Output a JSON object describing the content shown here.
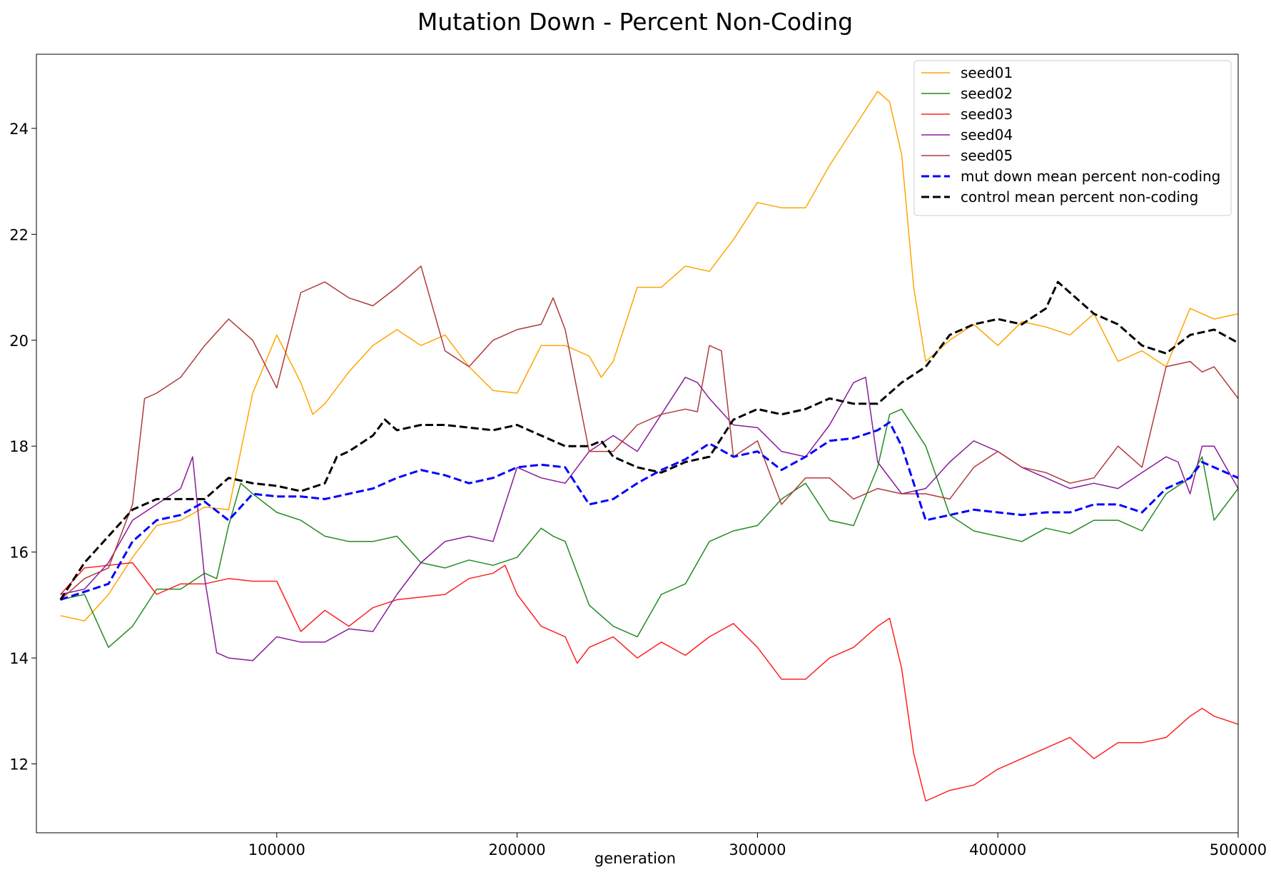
{
  "chart_data": {
    "type": "line",
    "title": "Mutation Down - Percent Non-Coding",
    "xlabel": "generation",
    "ylabel": "",
    "xlim": [
      0,
      500000
    ],
    "ylim": [
      10.7,
      25.4
    ],
    "xticks": [
      100000,
      200000,
      300000,
      400000,
      500000
    ],
    "xtick_labels": [
      "100000",
      "200000",
      "300000",
      "400000",
      "500000"
    ],
    "yticks": [
      12,
      14,
      16,
      18,
      20,
      22,
      24
    ],
    "ytick_labels": [
      "12",
      "14",
      "16",
      "18",
      "20",
      "22",
      "24"
    ],
    "grid": false,
    "legend_position": "top-right",
    "series": [
      {
        "name": "seed01",
        "color": "#FFA500",
        "dashed": false,
        "width": 1.5,
        "x": [
          10000,
          20000,
          30000,
          40000,
          50000,
          60000,
          70000,
          80000,
          90000,
          100000,
          110000,
          115000,
          120000,
          130000,
          140000,
          150000,
          160000,
          170000,
          180000,
          190000,
          200000,
          210000,
          220000,
          230000,
          235000,
          240000,
          250000,
          260000,
          270000,
          280000,
          290000,
          300000,
          310000,
          320000,
          330000,
          340000,
          350000,
          355000,
          360000,
          365000,
          370000,
          380000,
          390000,
          400000,
          410000,
          420000,
          430000,
          440000,
          450000,
          460000,
          470000,
          480000,
          490000,
          500000
        ],
        "y": [
          14.8,
          14.7,
          15.2,
          15.9,
          16.5,
          16.6,
          16.85,
          16.8,
          19.0,
          20.1,
          19.2,
          18.6,
          18.8,
          19.4,
          19.9,
          20.2,
          19.9,
          20.1,
          19.5,
          19.05,
          19.0,
          19.9,
          19.9,
          19.7,
          19.3,
          19.6,
          21.0,
          21.0,
          21.4,
          21.3,
          21.9,
          22.6,
          22.5,
          22.5,
          23.3,
          24.0,
          24.7,
          24.5,
          23.5,
          21.0,
          19.6,
          20.0,
          20.3,
          19.9,
          20.35,
          20.25,
          20.1,
          20.5,
          19.6,
          19.8,
          19.5,
          20.6,
          20.4,
          20.5
        ]
      },
      {
        "name": "seed02",
        "color": "#228B22",
        "dashed": false,
        "width": 1.5,
        "x": [
          10000,
          20000,
          30000,
          40000,
          50000,
          60000,
          70000,
          75000,
          80000,
          85000,
          90000,
          100000,
          110000,
          120000,
          130000,
          140000,
          150000,
          160000,
          170000,
          180000,
          190000,
          200000,
          210000,
          215000,
          220000,
          230000,
          240000,
          250000,
          260000,
          270000,
          280000,
          290000,
          300000,
          310000,
          320000,
          330000,
          340000,
          350000,
          355000,
          360000,
          370000,
          380000,
          390000,
          400000,
          410000,
          420000,
          430000,
          440000,
          450000,
          460000,
          470000,
          480000,
          485000,
          490000,
          500000
        ],
        "y": [
          15.1,
          15.2,
          14.2,
          14.6,
          15.3,
          15.3,
          15.6,
          15.5,
          16.5,
          17.3,
          17.1,
          16.75,
          16.6,
          16.3,
          16.2,
          16.2,
          16.3,
          15.8,
          15.7,
          15.85,
          15.75,
          15.9,
          16.45,
          16.3,
          16.2,
          15.0,
          14.6,
          14.4,
          15.2,
          15.4,
          16.2,
          16.4,
          16.5,
          17.0,
          17.3,
          16.6,
          16.5,
          17.6,
          18.6,
          18.7,
          18.0,
          16.7,
          16.4,
          16.3,
          16.2,
          16.45,
          16.35,
          16.6,
          16.6,
          16.4,
          17.1,
          17.4,
          17.8,
          16.6,
          17.2
        ]
      },
      {
        "name": "seed03",
        "color": "#FF2020",
        "dashed": false,
        "width": 1.5,
        "x": [
          10000,
          20000,
          30000,
          40000,
          50000,
          60000,
          70000,
          80000,
          90000,
          100000,
          110000,
          120000,
          130000,
          140000,
          150000,
          160000,
          170000,
          180000,
          190000,
          195000,
          200000,
          210000,
          220000,
          225000,
          230000,
          240000,
          250000,
          260000,
          270000,
          280000,
          290000,
          300000,
          310000,
          320000,
          330000,
          340000,
          350000,
          355000,
          360000,
          365000,
          370000,
          380000,
          390000,
          400000,
          410000,
          420000,
          430000,
          440000,
          450000,
          460000,
          470000,
          480000,
          485000,
          490000,
          500000
        ],
        "y": [
          15.2,
          15.7,
          15.75,
          15.8,
          15.2,
          15.4,
          15.4,
          15.5,
          15.45,
          15.45,
          14.5,
          14.9,
          14.6,
          14.95,
          15.1,
          15.15,
          15.2,
          15.5,
          15.6,
          15.75,
          15.2,
          14.6,
          14.4,
          13.9,
          14.2,
          14.4,
          14.0,
          14.3,
          14.05,
          14.4,
          14.65,
          14.2,
          13.6,
          13.6,
          14.0,
          14.2,
          14.6,
          14.75,
          13.8,
          12.2,
          11.3,
          11.5,
          11.6,
          11.9,
          12.1,
          12.3,
          12.5,
          12.1,
          12.4,
          12.4,
          12.5,
          12.9,
          13.05,
          12.9,
          12.75
        ]
      },
      {
        "name": "seed04",
        "color": "#8B1A9B",
        "dashed": false,
        "width": 1.5,
        "x": [
          10000,
          20000,
          30000,
          40000,
          50000,
          60000,
          65000,
          70000,
          75000,
          80000,
          90000,
          100000,
          110000,
          120000,
          130000,
          140000,
          150000,
          160000,
          170000,
          180000,
          190000,
          200000,
          210000,
          220000,
          230000,
          240000,
          250000,
          260000,
          270000,
          275000,
          280000,
          290000,
          300000,
          310000,
          320000,
          330000,
          340000,
          345000,
          350000,
          360000,
          370000,
          380000,
          390000,
          400000,
          410000,
          420000,
          430000,
          440000,
          450000,
          460000,
          470000,
          475000,
          480000,
          485000,
          490000,
          500000
        ],
        "y": [
          15.2,
          15.3,
          15.8,
          16.6,
          16.9,
          17.2,
          17.8,
          15.5,
          14.1,
          14.0,
          13.95,
          14.4,
          14.3,
          14.3,
          14.55,
          14.5,
          15.2,
          15.8,
          16.2,
          16.3,
          16.2,
          17.6,
          17.4,
          17.3,
          17.9,
          18.2,
          17.9,
          18.6,
          19.3,
          19.2,
          18.9,
          18.4,
          18.35,
          17.9,
          17.8,
          18.4,
          19.2,
          19.3,
          17.7,
          17.1,
          17.2,
          17.7,
          18.1,
          17.9,
          17.6,
          17.4,
          17.2,
          17.3,
          17.2,
          17.5,
          17.8,
          17.7,
          17.1,
          18.0,
          18.0,
          17.2
        ]
      },
      {
        "name": "seed05",
        "color": "#B03A3A",
        "dashed": false,
        "width": 1.5,
        "x": [
          10000,
          20000,
          30000,
          40000,
          45000,
          50000,
          60000,
          70000,
          80000,
          90000,
          100000,
          110000,
          120000,
          130000,
          140000,
          150000,
          160000,
          170000,
          180000,
          190000,
          200000,
          210000,
          215000,
          220000,
          230000,
          240000,
          250000,
          260000,
          270000,
          275000,
          280000,
          285000,
          290000,
          300000,
          310000,
          320000,
          330000,
          340000,
          350000,
          360000,
          370000,
          380000,
          390000,
          400000,
          410000,
          420000,
          430000,
          440000,
          450000,
          460000,
          470000,
          480000,
          485000,
          490000,
          500000
        ],
        "y": [
          15.1,
          15.5,
          15.7,
          16.9,
          18.9,
          19.0,
          19.3,
          19.9,
          20.4,
          20.0,
          19.1,
          20.9,
          21.1,
          20.8,
          20.65,
          21.0,
          21.4,
          19.8,
          19.5,
          20.0,
          20.2,
          20.3,
          20.8,
          20.2,
          17.9,
          17.9,
          18.4,
          18.6,
          18.7,
          18.65,
          19.9,
          19.8,
          17.8,
          18.1,
          16.9,
          17.4,
          17.4,
          17.0,
          17.2,
          17.1,
          17.1,
          17.0,
          17.6,
          17.9,
          17.6,
          17.5,
          17.3,
          17.4,
          18.0,
          17.6,
          19.5,
          19.6,
          19.4,
          19.5,
          18.9
        ]
      },
      {
        "name": "mut down mean percent non-coding",
        "color": "#0000FF",
        "dashed": true,
        "width": 3,
        "x": [
          10000,
          20000,
          30000,
          40000,
          50000,
          60000,
          70000,
          80000,
          90000,
          100000,
          110000,
          120000,
          130000,
          140000,
          150000,
          160000,
          170000,
          180000,
          190000,
          200000,
          210000,
          220000,
          230000,
          240000,
          250000,
          260000,
          270000,
          280000,
          290000,
          300000,
          310000,
          320000,
          330000,
          340000,
          350000,
          355000,
          360000,
          370000,
          380000,
          390000,
          400000,
          410000,
          420000,
          430000,
          440000,
          450000,
          460000,
          470000,
          480000,
          485000,
          490000,
          500000
        ],
        "y": [
          15.1,
          15.25,
          15.4,
          16.2,
          16.6,
          16.7,
          16.95,
          16.6,
          17.1,
          17.05,
          17.05,
          17.0,
          17.1,
          17.2,
          17.4,
          17.55,
          17.45,
          17.3,
          17.4,
          17.6,
          17.65,
          17.6,
          16.9,
          17.0,
          17.3,
          17.55,
          17.75,
          18.05,
          17.8,
          17.9,
          17.55,
          17.8,
          18.1,
          18.15,
          18.3,
          18.45,
          18.0,
          16.6,
          16.7,
          16.8,
          16.75,
          16.7,
          16.75,
          16.75,
          16.9,
          16.9,
          16.75,
          17.2,
          17.4,
          17.7,
          17.6,
          17.4
        ]
      },
      {
        "name": "control mean percent non-coding",
        "color": "#000000",
        "dashed": true,
        "width": 3,
        "x": [
          10000,
          20000,
          30000,
          40000,
          50000,
          60000,
          70000,
          80000,
          90000,
          100000,
          110000,
          120000,
          125000,
          130000,
          140000,
          145000,
          150000,
          160000,
          170000,
          180000,
          190000,
          200000,
          210000,
          220000,
          230000,
          235000,
          240000,
          250000,
          260000,
          270000,
          280000,
          290000,
          300000,
          310000,
          320000,
          330000,
          340000,
          350000,
          360000,
          370000,
          380000,
          390000,
          400000,
          410000,
          420000,
          425000,
          430000,
          440000,
          450000,
          460000,
          470000,
          480000,
          490000,
          500000
        ],
        "y": [
          15.1,
          15.8,
          16.3,
          16.8,
          17.0,
          17.0,
          17.0,
          17.4,
          17.3,
          17.25,
          17.15,
          17.3,
          17.8,
          17.9,
          18.2,
          18.5,
          18.3,
          18.4,
          18.4,
          18.35,
          18.3,
          18.4,
          18.2,
          18.0,
          18.0,
          18.1,
          17.8,
          17.6,
          17.5,
          17.7,
          17.8,
          18.5,
          18.7,
          18.6,
          18.7,
          18.9,
          18.8,
          18.8,
          19.2,
          19.5,
          20.1,
          20.3,
          20.4,
          20.3,
          20.6,
          21.1,
          20.9,
          20.5,
          20.3,
          19.9,
          19.75,
          20.1,
          20.2,
          19.95
        ]
      }
    ]
  }
}
